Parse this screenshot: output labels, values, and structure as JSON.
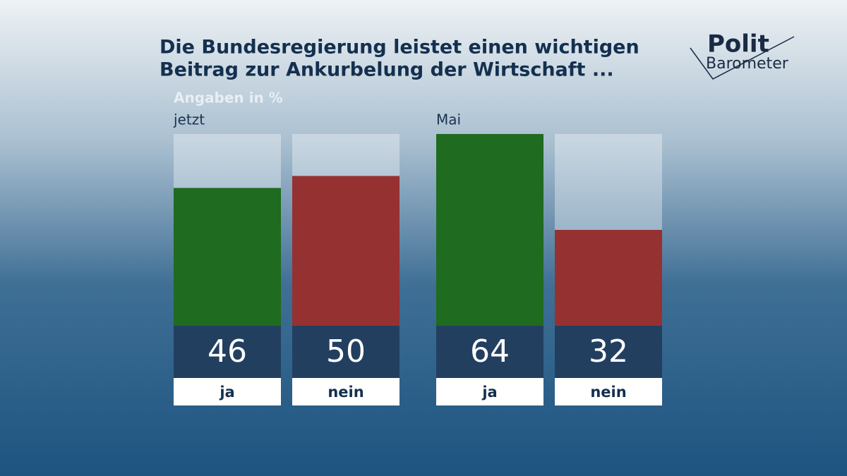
{
  "title": [
    "Die Bundesregierung leistet einen wichtigen",
    "Beitrag zur Ankurbelung der Wirtschaft ..."
  ],
  "subtitle": "Angaben in %",
  "logo": [
    "Polit",
    "Barometer"
  ],
  "chart_data": [
    {
      "type": "bar",
      "title": "jetzt",
      "categories": [
        "ja",
        "nein"
      ],
      "values": [
        46,
        50
      ],
      "colors": [
        "#1f6b1f",
        "#963132"
      ],
      "ylim": [
        0,
        64
      ]
    },
    {
      "type": "bar",
      "title": "Mai",
      "categories": [
        "ja",
        "nein"
      ],
      "values": [
        64,
        32
      ],
      "colors": [
        "#1f6b1f",
        "#963132"
      ],
      "ylim": [
        0,
        64
      ]
    }
  ]
}
